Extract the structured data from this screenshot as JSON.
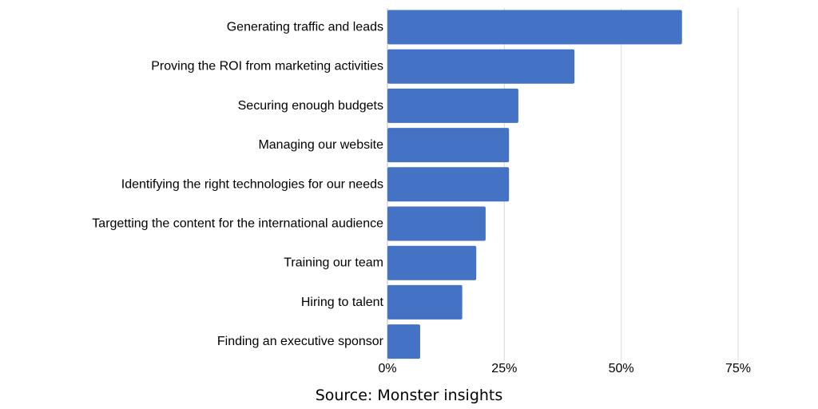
{
  "chart_data": {
    "type": "bar",
    "orientation": "horizontal",
    "categories": [
      "Generating traffic and leads",
      "Proving the ROI from marketing activities",
      "Securing enough budgets",
      "Managing our website",
      "Identifying the right technologies for our needs",
      "Targetting the content for the international audience",
      "Training our team",
      "Hiring to talent",
      "Finding an executive sponsor"
    ],
    "values": [
      63,
      40,
      28,
      26,
      26,
      21,
      19,
      16,
      7
    ],
    "xlim": [
      0,
      75
    ],
    "x_ticks": [
      0,
      25,
      50,
      75
    ],
    "x_tick_labels": [
      "0%",
      "25%",
      "50%",
      "75%"
    ],
    "bar_color": "#4472c4",
    "grid": "vertical",
    "legend": "none"
  },
  "source_text": "Source: Monster insights"
}
